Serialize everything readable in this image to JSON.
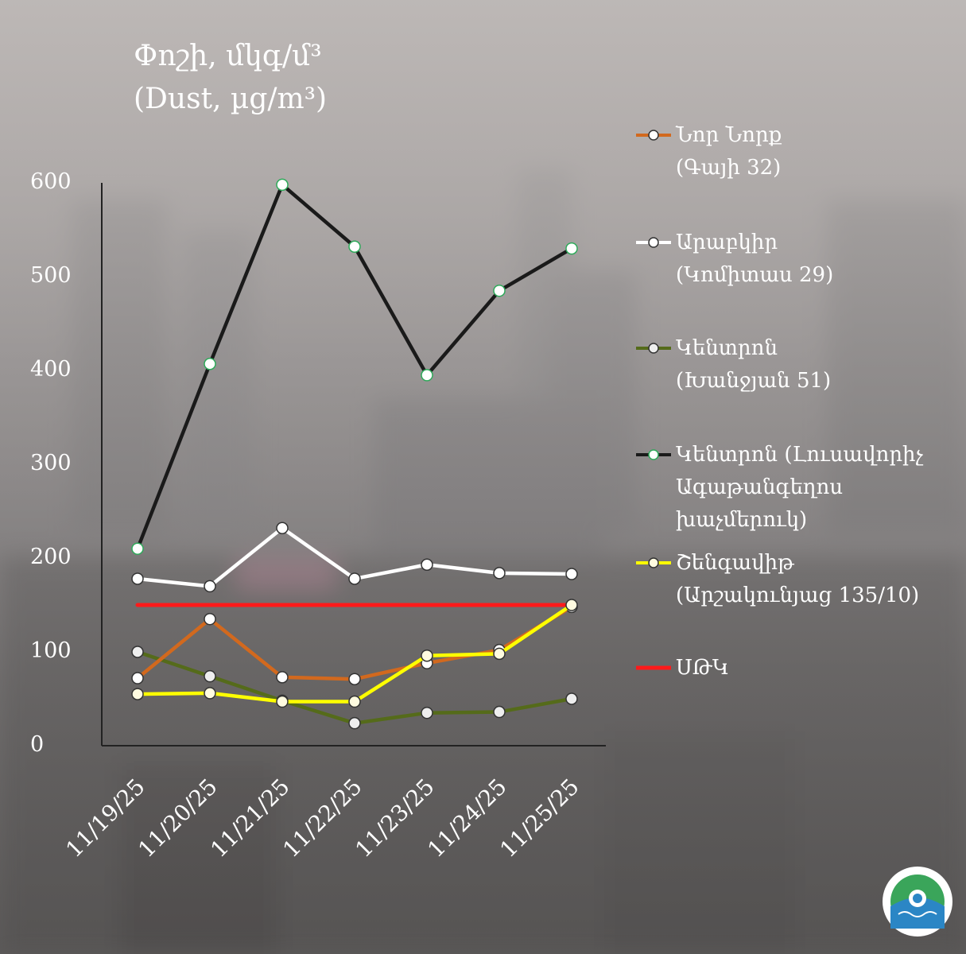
{
  "title": {
    "line1": "Փոշի, մկգ/մ³",
    "line2": "(Dust, µg/m³)"
  },
  "chart_data": {
    "type": "line",
    "categories": [
      "11/19/25",
      "11/20/25",
      "11/21/25",
      "11/22/25",
      "11/23/25",
      "11/24/25",
      "11/25/25"
    ],
    "ylim": [
      0,
      600
    ],
    "yticks": [
      "0",
      "100",
      "200",
      "300",
      "400",
      "500",
      "600"
    ],
    "series": [
      {
        "name": "Նոր Նորք (Գայի 32)",
        "color": "#d2691e",
        "marker_fill": "#ffffff",
        "values": [
          72,
          135,
          73,
          71,
          88,
          102,
          148
        ]
      },
      {
        "name": "Արաբկիր (Կոմիտաս 29)",
        "color": "#ffffff",
        "marker_fill": "#ffffff",
        "values": [
          178,
          170,
          232,
          178,
          193,
          184,
          183
        ]
      },
      {
        "name": "Կենտրոն (Խանջյան 51)",
        "color": "#556b1a",
        "marker_fill": "#eeeeee",
        "values": [
          100,
          74,
          48,
          24,
          35,
          36,
          50
        ]
      },
      {
        "name": "Կենտրոն (Լուսավորիչ Ագաթանգեղոս խաչմերուկ)",
        "color": "#1a1a1a",
        "marker_fill": "#ffffff",
        "marker_stroke": "#2eaa5a",
        "values": [
          210,
          407,
          598,
          532,
          395,
          485,
          530
        ]
      },
      {
        "name": "Շենգավիթ (Արշակունյաց 135/10)",
        "color": "#ffff00",
        "marker_fill": "#fffbe0",
        "values": [
          55,
          56,
          47,
          47,
          96,
          98,
          150
        ]
      },
      {
        "name": "ՍԹԿ",
        "color": "#ff1a1a",
        "values": [
          150,
          150,
          150,
          150,
          150,
          150,
          150
        ]
      }
    ]
  },
  "legend": [
    {
      "line1": "Նոր Նորք",
      "line2": "(Գայի 32)",
      "line3": ""
    },
    {
      "line1": "Արաբկիր",
      "line2": "(Կոմիտաս 29)",
      "line3": ""
    },
    {
      "line1": "Կենտրոն",
      "line2": "(Խանջյան 51)",
      "line3": ""
    },
    {
      "line1": "Կենտրոն (Լուսավորիչ",
      "line2": "Ագաթանգեղոս",
      "line3": "խաչմերուկ)"
    },
    {
      "line1": "Շենգավիթ",
      "line2": "(Արշակունյաց 135/10)",
      "line3": ""
    },
    {
      "line1": "ՍԹԿ",
      "line2": "",
      "line3": ""
    }
  ]
}
